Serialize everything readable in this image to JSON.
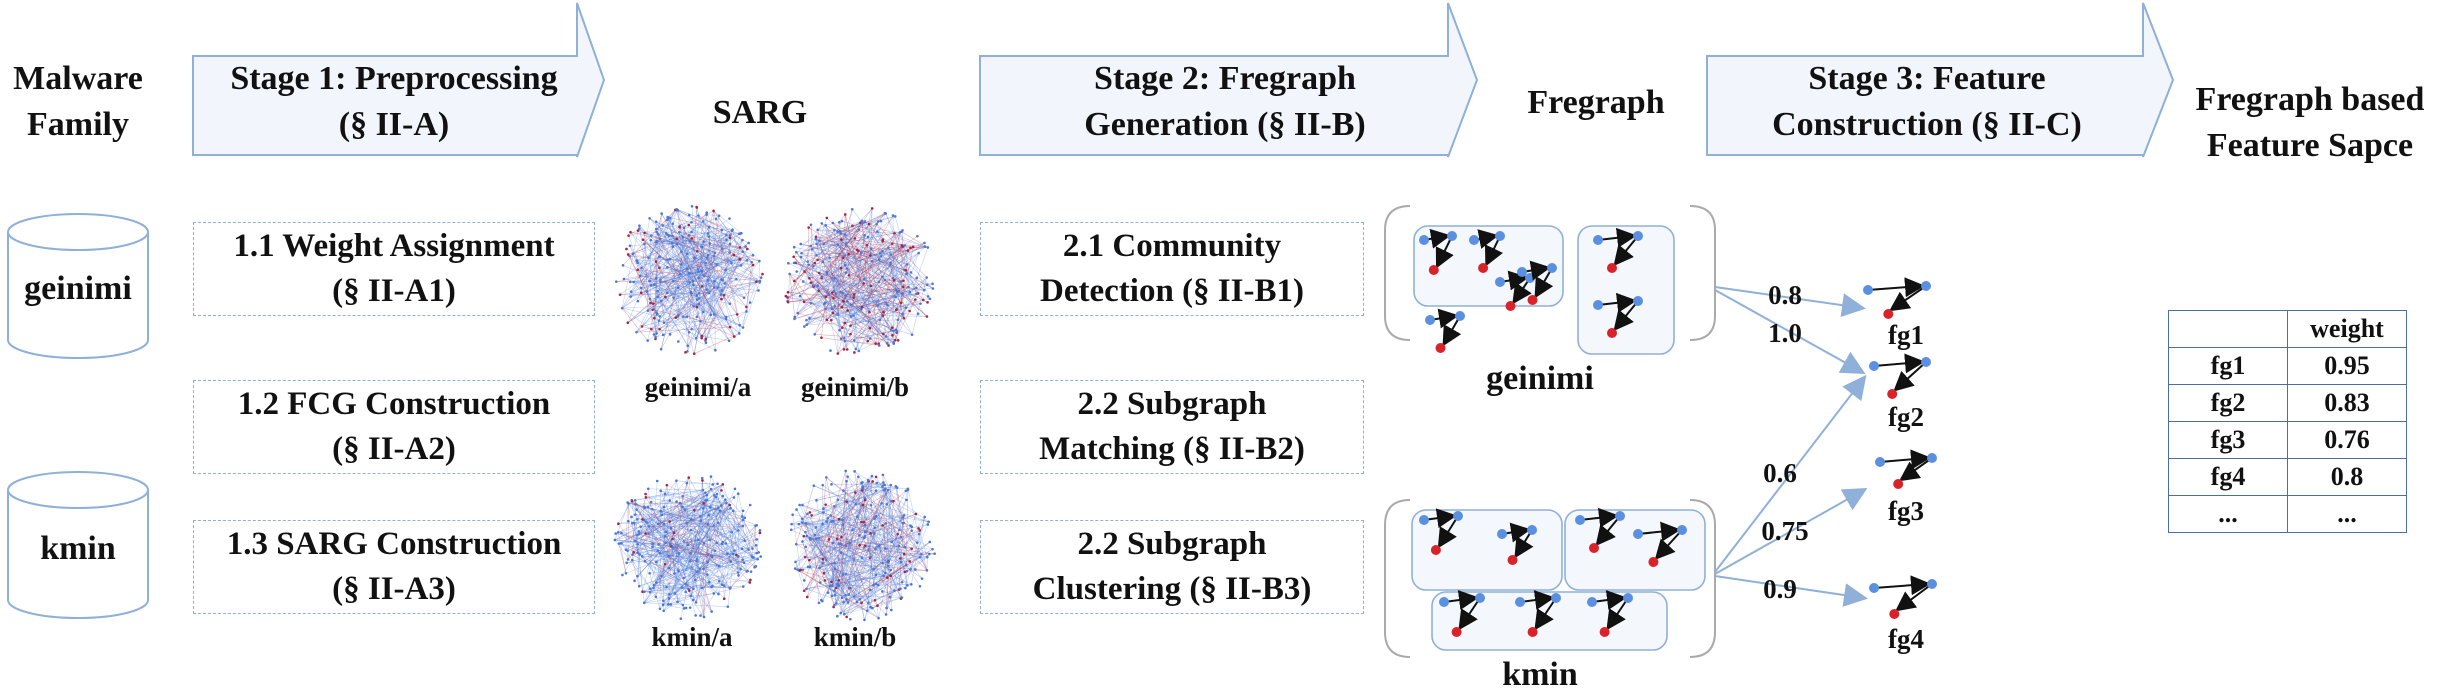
{
  "headers": {
    "malware_family": [
      "Malware",
      "Family"
    ],
    "sarg": "SARG",
    "fregraph": "Fregraph",
    "feature_space": [
      "Fregraph based",
      "Feature Sapce"
    ]
  },
  "stages": [
    {
      "line1": "Stage 1: Preprocessing",
      "line2": "(§ II-A)"
    },
    {
      "line1": "Stage 2: Fregraph",
      "line2": "Generation (§ II-B)"
    },
    {
      "line1": "Stage 3: Feature",
      "line2": "Construction (§ II-C)"
    }
  ],
  "families": [
    "geinimi",
    "kmin"
  ],
  "stage1_steps": [
    {
      "line1": "1.1 Weight Assignment",
      "line2": "(§ II-A1)"
    },
    {
      "line1": "1.2 FCG Construction",
      "line2": "(§ II-A2)"
    },
    {
      "line1": "1.3 SARG Construction",
      "line2": "(§ II-A3)"
    }
  ],
  "stage2_steps": [
    {
      "line1": "2.1 Community",
      "line2": "Detection (§ II-B1)"
    },
    {
      "line1": "2.2 Subgraph",
      "line2": "Matching (§ II-B2)"
    },
    {
      "line1": "2.2 Subgraph",
      "line2": "Clustering (§ II-B3)"
    }
  ],
  "sarg_labels": [
    "geinimi/a",
    "geinimi/b",
    "kmin/a",
    "kmin/b"
  ],
  "fregraph_groups": [
    "geinimi",
    "kmin"
  ],
  "edge_weights": [
    "0.8",
    "1.0",
    "0.6",
    "0.75",
    "0.9"
  ],
  "fregraphs": [
    "fg1",
    "fg2",
    "fg3",
    "fg4"
  ],
  "weight_table": {
    "header": [
      "",
      "weight"
    ],
    "rows": [
      [
        "fg1",
        "0.95"
      ],
      [
        "fg2",
        "0.83"
      ],
      [
        "fg3",
        "0.76"
      ],
      [
        "fg4",
        "0.8"
      ],
      [
        "...",
        "..."
      ]
    ]
  },
  "colors": {
    "arrow_fill": "#f2f6fc",
    "arrow_stroke": "#8fb0d8",
    "node_blue": "#5b8fe0",
    "node_red": "#d8232a",
    "cloud_blue": "#4a78d6",
    "cloud_red": "#b0203a"
  }
}
